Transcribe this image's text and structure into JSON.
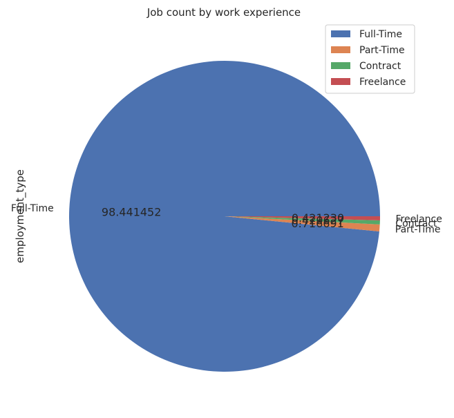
{
  "chart_data": {
    "type": "pie",
    "title": "Job count by work experience",
    "ylabel": "employment_type",
    "categories": [
      "Full-Time",
      "Part-Time",
      "Contract",
      "Freelance"
    ],
    "values": [
      98.441452,
      0.716691,
      0.420627,
      0.42123
    ],
    "value_labels": [
      "98.441452",
      "0.716691",
      "0.420627",
      "0.421230"
    ],
    "colors": [
      "#4C72B0",
      "#DD8452",
      "#55A868",
      "#C44E52"
    ],
    "legend": {
      "position": "top-right",
      "entries": [
        "Full-Time",
        "Part-Time",
        "Contract",
        "Freelance"
      ]
    },
    "start_angle": 0,
    "direction": "counterclockwise"
  }
}
